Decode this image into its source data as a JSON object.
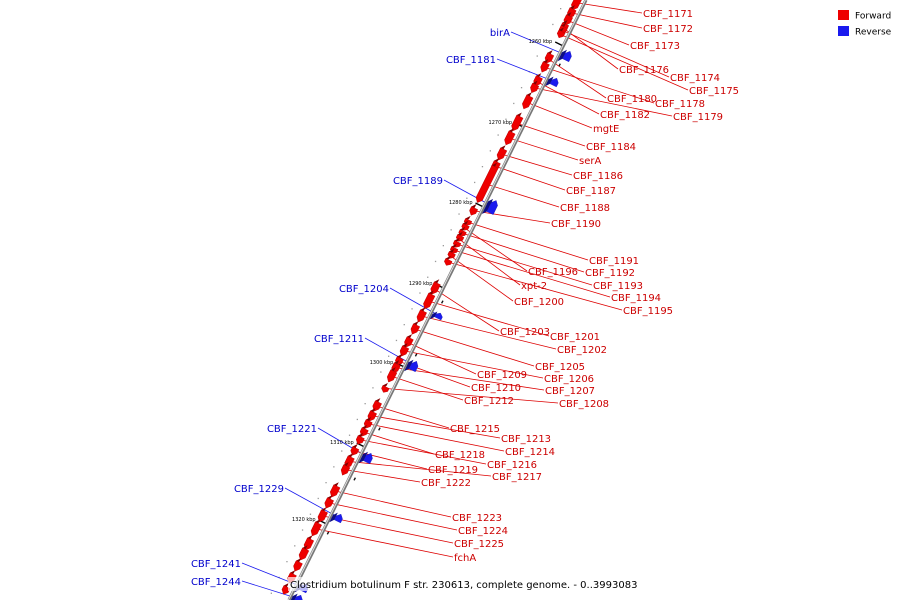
{
  "caption": "Clostridium botulinum F str. 230613, complete genome. - 0..3993083",
  "legend": {
    "forward_label": "Forward",
    "reverse_label": "Reverse",
    "forward_color": "#ee0000",
    "reverse_color": "#1a1aee"
  },
  "scale_ticks": [
    "1260 kbp",
    "1270 kbp",
    "1280 kbp",
    "1290 kbp",
    "1300 kbp",
    "1310 kbp",
    "1320 kbp"
  ],
  "forward_genes": [
    "CBF_1171",
    "CBF_1172",
    "CBF_1173",
    "CBF_1176",
    "CBF_1174",
    "CBF_1175",
    "CBF_1180",
    "CBF_1178",
    "CBF_1182",
    "CBF_1179",
    "mgtE",
    "CBF_1184",
    "serA",
    "CBF_1186",
    "CBF_1187",
    "CBF_1188",
    "CBF_1190",
    "CBF_1191",
    "CBF_1196",
    "CBF_1192",
    "xpt-2",
    "CBF_1193",
    "CBF_1194",
    "CBF_1200",
    "CBF_1195",
    "CBF_1203",
    "CBF_1201",
    "CBF_1202",
    "CBF_1205",
    "CBF_1209",
    "CBF_1206",
    "CBF_1210",
    "CBF_1207",
    "CBF_1212",
    "CBF_1208",
    "CBF_1215",
    "CBF_1213",
    "CBF_1214",
    "CBF_1218",
    "CBF_1216",
    "CBF_1219",
    "CBF_1217",
    "CBF_1222",
    "CBF_1223",
    "CBF_1224",
    "CBF_1225",
    "fchA"
  ],
  "reverse_genes": [
    "birA",
    "CBF_1181",
    "CBF_1189",
    "CBF_1204",
    "CBF_1211",
    "CBF_1221",
    "CBF_1229",
    "CBF_1241",
    "CBF_1244"
  ]
}
